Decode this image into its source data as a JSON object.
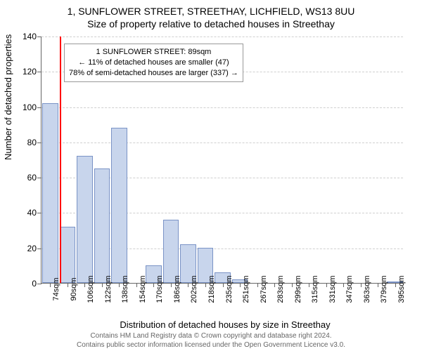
{
  "title": {
    "line1": "1, SUNFLOWER STREET, STREETHAY, LICHFIELD, WS13 8UU",
    "line2": "Size of property relative to detached houses in Streethay"
  },
  "y_axis": {
    "label": "Number of detached properties",
    "min": 0,
    "max": 140,
    "step": 20,
    "ticks": [
      0,
      20,
      40,
      60,
      80,
      100,
      120,
      140
    ]
  },
  "x_axis": {
    "label": "Distribution of detached houses by size in Streethay",
    "categories": [
      "74sqm",
      "90sqm",
      "106sqm",
      "122sqm",
      "138sqm",
      "154sqm",
      "170sqm",
      "186sqm",
      "202sqm",
      "218sqm",
      "235sqm",
      "251sqm",
      "267sqm",
      "283sqm",
      "299sqm",
      "315sqm",
      "331sqm",
      "347sqm",
      "363sqm",
      "379sqm",
      "395sqm"
    ]
  },
  "chart": {
    "type": "histogram",
    "bar_color": "#c8d5ec",
    "bar_border": "#7a93c6",
    "background": "#ffffff",
    "grid_color": "#cfcfcf",
    "values": [
      102,
      32,
      72,
      65,
      88,
      0,
      10,
      36,
      22,
      20,
      6,
      2,
      0,
      0,
      0,
      0,
      0,
      0,
      0,
      0,
      1
    ],
    "bar_width_ratio": 0.92
  },
  "marker": {
    "color": "#ff0000",
    "at_bin_index": 1,
    "position_in_bin": 0.0
  },
  "tooltip": {
    "line1": "1 SUNFLOWER STREET: 89sqm",
    "line2": "← 11% of detached houses are smaller (47)",
    "line3": "78% of semi-detached houses are larger (337) →"
  },
  "footer": {
    "line1": "Contains HM Land Registry data © Crown copyright and database right 2024.",
    "line2": "Contains public sector information licensed under the Open Government Licence v3.0."
  }
}
